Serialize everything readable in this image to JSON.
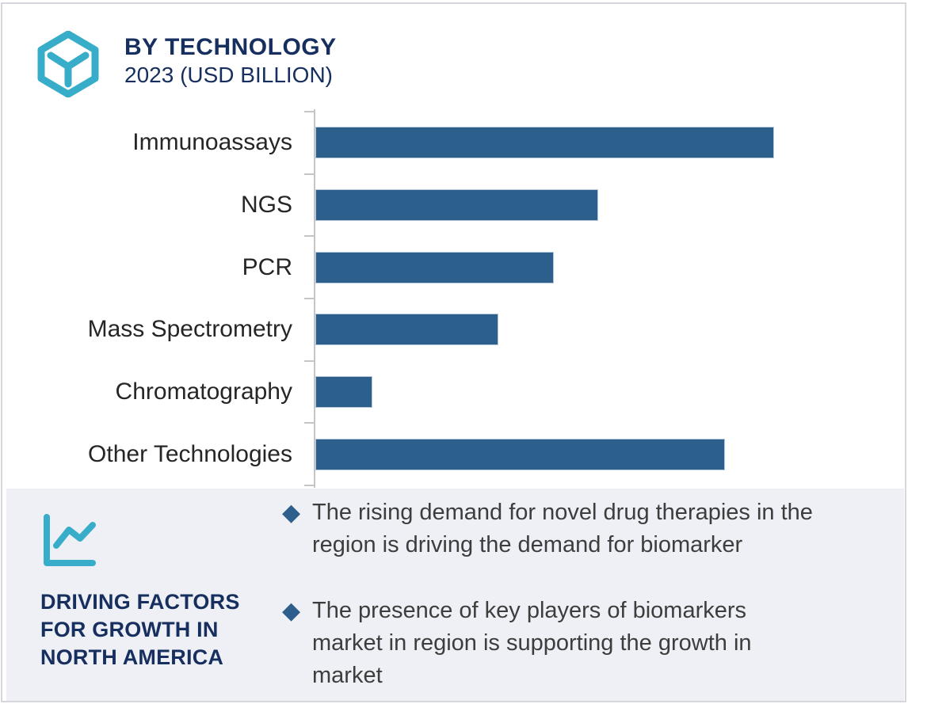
{
  "header": {
    "title": "BY TECHNOLOGY",
    "subtitle": "2023 (USD BILLION)",
    "logo_icon": "hexagon-y-logo",
    "accent_teal": "#38adc9",
    "navy": "#172f5f"
  },
  "chart_data": {
    "type": "bar",
    "orientation": "horizontal",
    "title": "BY TECHNOLOGY",
    "subtitle": "2023 (USD BILLION)",
    "unit": "USD Billion",
    "categories": [
      "Immunoassays",
      "NGS",
      "PCR",
      "Mass Spectrometry",
      "Chromatography",
      "Other Technologies"
    ],
    "values_pct_of_axis": [
      77.0,
      47.5,
      40.0,
      30.7,
      9.6,
      68.8
    ],
    "value_note": "no numeric axis ticks shown in image; bar sizes estimated as percent of plot width",
    "bar_color": "#2d5f8d",
    "axis_color": "#c5c5c5",
    "grid": false,
    "legend": false,
    "xlim": [
      0,
      100
    ]
  },
  "panel": {
    "icon": "line-chart-icon",
    "heading": "DRIVING FACTORS\nFOR GROWTH IN\nNORTH AMERICA",
    "bullet_marker": "◆",
    "bullet_color": "#2e5f8c",
    "background": "#eef0f5",
    "bullets": [
      "The rising demand for novel drug therapies in the\nregion is driving the demand for biomarker",
      "The presence of key players of biomarkers\nmarket in region is supporting the growth in\nmarket"
    ]
  }
}
